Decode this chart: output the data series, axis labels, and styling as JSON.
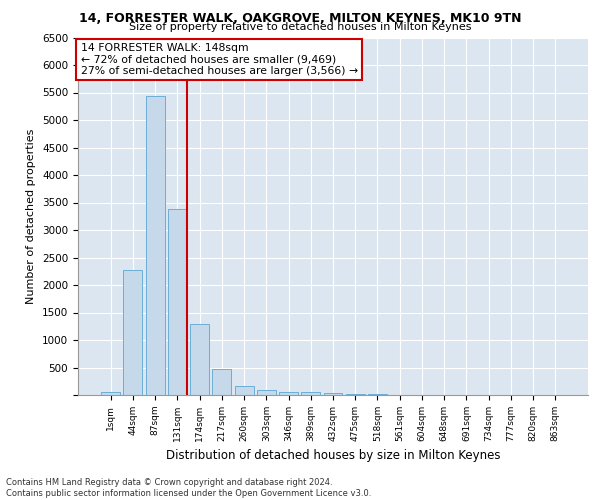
{
  "title1": "14, FORRESTER WALK, OAKGROVE, MILTON KEYNES, MK10 9TN",
  "title2": "Size of property relative to detached houses in Milton Keynes",
  "xlabel": "Distribution of detached houses by size in Milton Keynes",
  "ylabel": "Number of detached properties",
  "footnote": "Contains HM Land Registry data © Crown copyright and database right 2024.\nContains public sector information licensed under the Open Government Licence v3.0.",
  "categories": [
    "1sqm",
    "44sqm",
    "87sqm",
    "131sqm",
    "174sqm",
    "217sqm",
    "260sqm",
    "303sqm",
    "346sqm",
    "389sqm",
    "432sqm",
    "475sqm",
    "518sqm",
    "561sqm",
    "604sqm",
    "648sqm",
    "691sqm",
    "734sqm",
    "777sqm",
    "820sqm",
    "863sqm"
  ],
  "values": [
    60,
    2280,
    5430,
    3380,
    1300,
    480,
    160,
    90,
    60,
    50,
    30,
    20,
    10,
    5,
    3,
    2,
    1,
    1,
    0,
    0,
    0
  ],
  "bar_color": "#c5d9ea",
  "bar_edge_color": "#6aaed6",
  "bg_color": "#dce6f0",
  "grid_color": "#ffffff",
  "vline_x_index": 3,
  "vline_color": "#cc0000",
  "annotation_text": "14 FORRESTER WALK: 148sqm\n← 72% of detached houses are smaller (9,469)\n27% of semi-detached houses are larger (3,566) →",
  "annotation_box_color": "#cc0000",
  "ylim": [
    0,
    6500
  ],
  "yticks": [
    0,
    500,
    1000,
    1500,
    2000,
    2500,
    3000,
    3500,
    4000,
    4500,
    5000,
    5500,
    6000,
    6500
  ]
}
